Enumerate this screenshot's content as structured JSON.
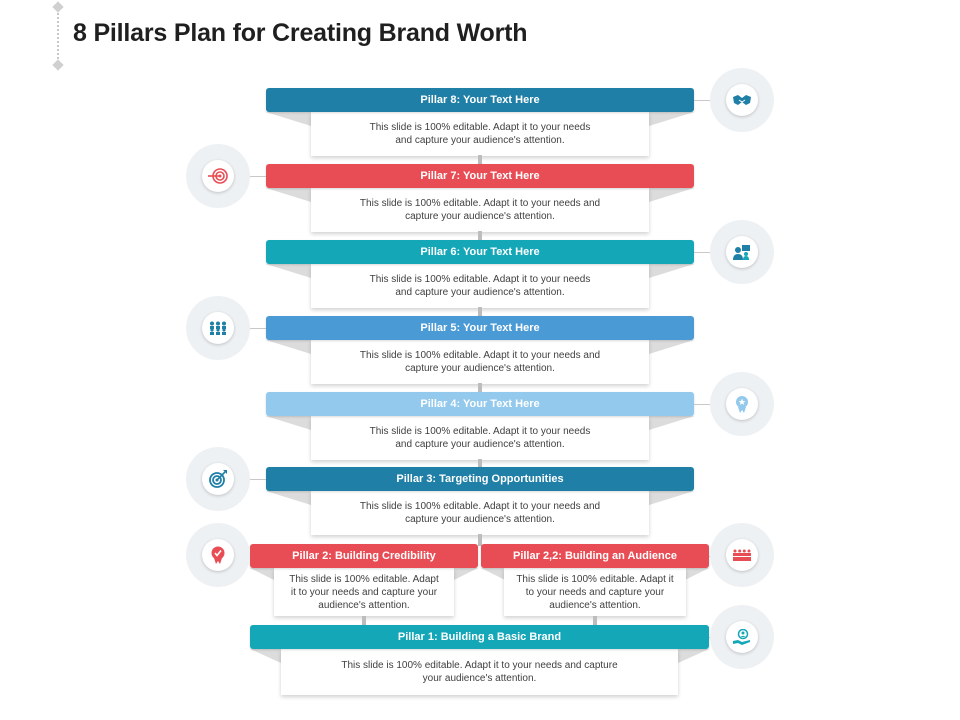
{
  "page": {
    "title": "8 Pillars Plan for Creating Brand Worth"
  },
  "pillars": [
    {
      "label": "Pillar 8: Your Text Here",
      "lines": [
        "This slide is 100% editable.  Adapt it to your needs",
        "and capture your audience's attention."
      ],
      "color": "#1f7fa6",
      "icon": "handshake-icon"
    },
    {
      "label": "Pillar 7: Your Text Here",
      "lines": [
        "This slide is 100% editable.  Adapt it to your needs and",
        "capture your audience's attention."
      ],
      "color": "#e84d55",
      "icon": "target-arrow-icon"
    },
    {
      "label": "Pillar 6: Your Text Here",
      "lines": [
        "This slide is 100% editable.  Adapt it to your needs",
        "and capture your audience's attention."
      ],
      "color": "#14a7b8",
      "icon": "team-meeting-icon"
    },
    {
      "label": "Pillar 5: Your Text Here",
      "lines": [
        "This slide is 100% editable.  Adapt it to your needs and",
        "capture your audience's attention."
      ],
      "color": "#4a9ad6",
      "icon": "audience-icon"
    },
    {
      "label": "Pillar 4: Your Text Here",
      "lines": [
        "This slide is 100% editable.  Adapt it to your needs",
        "and capture your audience's attention."
      ],
      "color": "#92c9ec",
      "icon": "award-badge-icon"
    },
    {
      "label": "Pillar 3: Targeting Opportunities",
      "lines": [
        "This slide is 100% editable.  Adapt it to your needs and",
        "capture your audience's attention."
      ],
      "color": "#1f7fa6",
      "icon": "bullseye-icon"
    },
    {
      "label": "Pillar 2: Building  Credibility",
      "lines": [
        "This slide is 100% editable.  Adapt",
        "it to your needs and capture your",
        "audience's attention."
      ],
      "color": "#e84d55",
      "icon": "credibility-badge-icon"
    },
    {
      "label": "Pillar 2,2: Building  an Audience",
      "lines": [
        "This slide is 100% editable.  Adapt it",
        "to your needs and capture your",
        "audience's attention."
      ],
      "color": "#e84d55",
      "icon": "crowd-icon"
    },
    {
      "label": "Pillar 1: Building  a Basic Brand",
      "lines": [
        "This slide is 100% editable.  Adapt it to your needs and capture",
        "your audience's attention."
      ],
      "color": "#14a7b8",
      "icon": "hand-person-icon"
    }
  ]
}
